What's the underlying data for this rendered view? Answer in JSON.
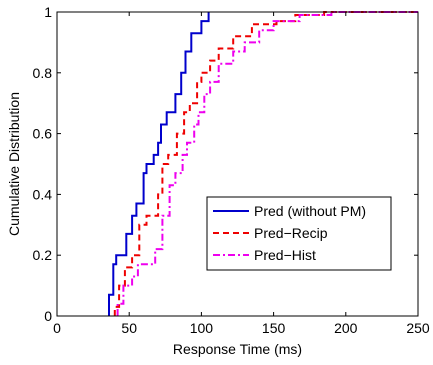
{
  "chart_data": {
    "type": "line",
    "xlabel": "Response Time (ms)",
    "ylabel": "Cumulative Distribution",
    "xlim": [
      0,
      250
    ],
    "ylim": [
      0,
      1
    ],
    "xticks": [
      0,
      50,
      100,
      150,
      200,
      250
    ],
    "yticks": [
      0,
      0.2,
      0.4,
      0.6,
      0.8,
      1
    ],
    "xtick_labels": [
      "0",
      "50",
      "100",
      "150",
      "200",
      "250"
    ],
    "ytick_labels": [
      "0",
      "0.2",
      "0.4",
      "0.6",
      "0.8",
      "1"
    ],
    "grid": false,
    "legend_position": "bottom-right",
    "step": true,
    "series": [
      {
        "name": "Pred (without PM)",
        "color": "#0000cc",
        "dash": "solid",
        "points": [
          [
            36,
            0
          ],
          [
            36,
            0.07
          ],
          [
            39,
            0.07
          ],
          [
            39,
            0.17
          ],
          [
            41,
            0.17
          ],
          [
            41,
            0.2
          ],
          [
            48,
            0.2
          ],
          [
            48,
            0.27
          ],
          [
            52,
            0.27
          ],
          [
            52,
            0.33
          ],
          [
            55,
            0.33
          ],
          [
            55,
            0.37
          ],
          [
            60,
            0.37
          ],
          [
            60,
            0.47
          ],
          [
            62,
            0.47
          ],
          [
            62,
            0.5
          ],
          [
            67,
            0.5
          ],
          [
            67,
            0.53
          ],
          [
            70,
            0.53
          ],
          [
            70,
            0.57
          ],
          [
            72,
            0.57
          ],
          [
            72,
            0.63
          ],
          [
            76,
            0.63
          ],
          [
            76,
            0.67
          ],
          [
            82,
            0.67
          ],
          [
            82,
            0.73
          ],
          [
            86,
            0.73
          ],
          [
            86,
            0.8
          ],
          [
            89,
            0.8
          ],
          [
            89,
            0.87
          ],
          [
            93,
            0.87
          ],
          [
            93,
            0.93
          ],
          [
            100,
            0.93
          ],
          [
            100,
            0.97
          ],
          [
            105,
            0.97
          ],
          [
            105,
            1.0
          ]
        ]
      },
      {
        "name": "Pred−Recip",
        "color": "#ee0000",
        "dash": "dashed",
        "points": [
          [
            40,
            0
          ],
          [
            40,
            0.03
          ],
          [
            43,
            0.03
          ],
          [
            43,
            0.1
          ],
          [
            47,
            0.1
          ],
          [
            47,
            0.16
          ],
          [
            52,
            0.16
          ],
          [
            52,
            0.2
          ],
          [
            57,
            0.2
          ],
          [
            57,
            0.3
          ],
          [
            62,
            0.3
          ],
          [
            62,
            0.33
          ],
          [
            70,
            0.33
          ],
          [
            70,
            0.4
          ],
          [
            73,
            0.4
          ],
          [
            73,
            0.5
          ],
          [
            77,
            0.5
          ],
          [
            77,
            0.53
          ],
          [
            83,
            0.53
          ],
          [
            83,
            0.6
          ],
          [
            88,
            0.6
          ],
          [
            88,
            0.67
          ],
          [
            92,
            0.67
          ],
          [
            92,
            0.7
          ],
          [
            97,
            0.7
          ],
          [
            97,
            0.77
          ],
          [
            100,
            0.77
          ],
          [
            100,
            0.8
          ],
          [
            106,
            0.8
          ],
          [
            106,
            0.84
          ],
          [
            112,
            0.84
          ],
          [
            112,
            0.88
          ],
          [
            122,
            0.88
          ],
          [
            122,
            0.92
          ],
          [
            135,
            0.92
          ],
          [
            135,
            0.96
          ],
          [
            152,
            0.96
          ],
          [
            152,
            0.97
          ],
          [
            165,
            0.97
          ],
          [
            165,
            0.99
          ],
          [
            185,
            0.99
          ],
          [
            185,
            1.0
          ],
          [
            250,
            1.0
          ]
        ]
      },
      {
        "name": "Pred−Hist",
        "color": "#ee00ee",
        "dash": "dashdot",
        "points": [
          [
            42,
            0
          ],
          [
            42,
            0.04
          ],
          [
            46,
            0.04
          ],
          [
            46,
            0.1
          ],
          [
            52,
            0.1
          ],
          [
            52,
            0.13
          ],
          [
            56,
            0.13
          ],
          [
            56,
            0.17
          ],
          [
            68,
            0.17
          ],
          [
            68,
            0.22
          ],
          [
            73,
            0.22
          ],
          [
            73,
            0.33
          ],
          [
            78,
            0.33
          ],
          [
            78,
            0.43
          ],
          [
            82,
            0.43
          ],
          [
            82,
            0.47
          ],
          [
            87,
            0.47
          ],
          [
            87,
            0.53
          ],
          [
            90,
            0.53
          ],
          [
            90,
            0.57
          ],
          [
            95,
            0.57
          ],
          [
            95,
            0.63
          ],
          [
            98,
            0.63
          ],
          [
            98,
            0.67
          ],
          [
            102,
            0.67
          ],
          [
            102,
            0.73
          ],
          [
            106,
            0.73
          ],
          [
            106,
            0.77
          ],
          [
            112,
            0.77
          ],
          [
            112,
            0.83
          ],
          [
            122,
            0.83
          ],
          [
            122,
            0.87
          ],
          [
            130,
            0.87
          ],
          [
            130,
            0.9
          ],
          [
            140,
            0.9
          ],
          [
            140,
            0.94
          ],
          [
            150,
            0.94
          ],
          [
            150,
            0.97
          ],
          [
            168,
            0.97
          ],
          [
            168,
            0.99
          ],
          [
            190,
            0.99
          ],
          [
            190,
            1.0
          ],
          [
            250,
            1.0
          ]
        ]
      }
    ]
  }
}
